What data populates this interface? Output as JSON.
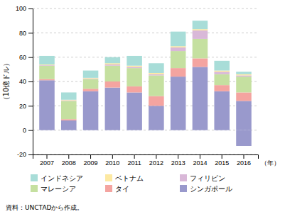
{
  "chart_data": {
    "type": "bar",
    "stacked": true,
    "categories": [
      "2007",
      "2008",
      "2009",
      "2010",
      "2011",
      "2012",
      "2013",
      "2014",
      "2015",
      "2016"
    ],
    "series": [
      {
        "color": "#9999cc",
        "values": [
          0,
          0,
          0,
          0,
          0,
          0,
          0,
          0,
          0,
          -13
        ]
      },
      {
        "name": "シンガポール",
        "color": "#9999cc",
        "values": [
          41,
          8,
          32,
          35,
          31,
          20,
          44,
          52,
          32,
          24
        ]
      },
      {
        "name": "タイ",
        "color": "#f4a4a0",
        "values": [
          1,
          1,
          2,
          5,
          5,
          8,
          7,
          7,
          5,
          7
        ]
      },
      {
        "name": "マレーシア",
        "color": "#c5e0a0",
        "values": [
          11,
          15,
          8,
          13,
          15,
          17,
          14,
          16,
          9,
          13
        ]
      },
      {
        "name": "フィリピン",
        "color": "#d9b8d8",
        "values": [
          0.5,
          0.5,
          0.5,
          1,
          1,
          1,
          3,
          7,
          2,
          1
        ]
      },
      {
        "name": "ベトナム",
        "color": "#fde9a2",
        "values": [
          0.5,
          0.5,
          0.5,
          1,
          1,
          1,
          1,
          1,
          1,
          1
        ]
      },
      {
        "name": "インドネシア",
        "color": "#a8ddd8",
        "values": [
          7,
          6,
          6,
          5,
          8,
          8,
          12,
          7,
          8,
          2
        ]
      }
    ],
    "ylabel": "（10億ドル）",
    "xlabel": "（年）",
    "source": "資料：UNCTADから作成。",
    "ylim": [
      -20,
      100
    ],
    "yticks": [
      -20,
      0,
      20,
      40,
      60,
      80,
      100
    ],
    "grid": true
  }
}
